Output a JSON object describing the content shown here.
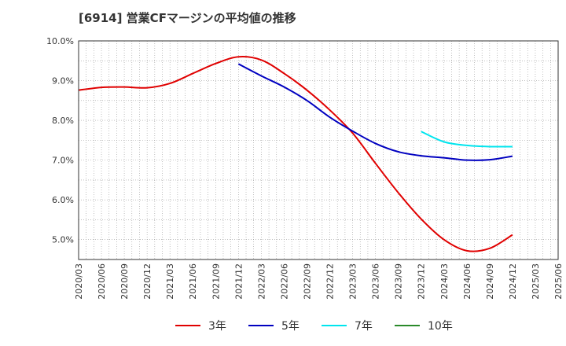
{
  "chart_data": {
    "type": "line",
    "title": "[6914]  営業CFマージンの平均値の推移",
    "xlabel": "",
    "ylabel": "",
    "ylim": [
      4.5,
      10.0
    ],
    "yticks": [
      "5.0%",
      "6.0%",
      "7.0%",
      "8.0%",
      "9.0%",
      "10.0%"
    ],
    "ytick_values": [
      5.0,
      6.0,
      7.0,
      8.0,
      9.0,
      10.0
    ],
    "x": [
      "2020/03",
      "2020/06",
      "2020/09",
      "2020/12",
      "2021/03",
      "2021/06",
      "2021/09",
      "2021/12",
      "2022/03",
      "2022/06",
      "2022/09",
      "2022/12",
      "2023/03",
      "2023/06",
      "2023/09",
      "2023/12",
      "2024/03",
      "2024/06",
      "2024/09",
      "2024/12",
      "2025/03",
      "2025/06"
    ],
    "grid": true,
    "legend_position": "bottom",
    "series": [
      {
        "name": "3年",
        "color": "#e00000",
        "values": [
          8.76,
          8.83,
          8.84,
          8.82,
          8.93,
          9.18,
          9.43,
          9.6,
          9.52,
          9.18,
          8.76,
          8.26,
          7.68,
          6.92,
          6.18,
          5.52,
          5.0,
          4.72,
          4.78,
          5.12,
          null,
          null
        ]
      },
      {
        "name": "5年",
        "color": "#0000c0",
        "values": [
          null,
          null,
          null,
          null,
          null,
          null,
          null,
          9.42,
          9.12,
          8.84,
          8.5,
          8.08,
          7.73,
          7.42,
          7.21,
          7.11,
          7.06,
          7.0,
          7.01,
          7.1,
          null,
          null
        ]
      },
      {
        "name": "7年",
        "color": "#00e5ee",
        "values": [
          null,
          null,
          null,
          null,
          null,
          null,
          null,
          null,
          null,
          null,
          null,
          null,
          null,
          null,
          null,
          7.72,
          7.46,
          7.37,
          7.34,
          7.34,
          null,
          null
        ]
      },
      {
        "name": "10年",
        "color": "#2a8a2a",
        "values": [
          null,
          null,
          null,
          null,
          null,
          null,
          null,
          null,
          null,
          null,
          null,
          null,
          null,
          null,
          null,
          null,
          null,
          null,
          null,
          null,
          null,
          null
        ]
      }
    ]
  }
}
